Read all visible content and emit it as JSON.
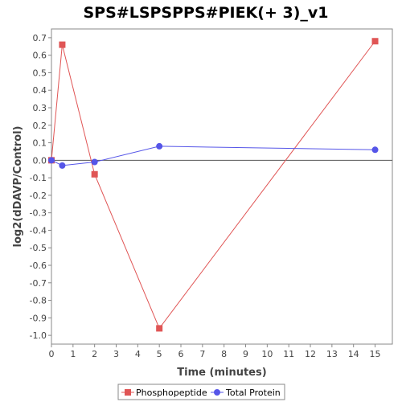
{
  "chart_data": {
    "type": "line",
    "title": "SPS#LSPSPPS#PIEK(+ 3)_v1",
    "xlabel": "Time (minutes)",
    "ylabel": "log2(dDAVP/Control)",
    "xlim": [
      0,
      15.8
    ],
    "ylim": [
      -1.05,
      0.75
    ],
    "x_ticks": [
      0,
      1,
      2,
      3,
      4,
      5,
      6,
      7,
      8,
      9,
      10,
      11,
      12,
      13,
      14,
      15
    ],
    "y_ticks": [
      0.7,
      0.6,
      0.5,
      0.4,
      0.3,
      0.2,
      0.1,
      0.0,
      -0.1,
      -0.2,
      -0.3,
      -0.4,
      -0.5,
      -0.6,
      -0.7,
      -0.8,
      -0.9,
      -1.0
    ],
    "y_tick_labels": [
      "0.7",
      "0.6",
      "0.5",
      "0.4",
      "0.3",
      "0.2",
      "0.1",
      "0.0",
      "-0.1",
      "-0.2",
      "-0.3",
      "-0.4",
      "-0.5",
      "-0.6",
      "-0.7",
      "-0.8",
      "-0.9",
      "-1.0"
    ],
    "grid": false,
    "zero_line": true,
    "legend_position": "bottom",
    "series": [
      {
        "name": "Phosphopeptide",
        "marker": "square",
        "color": "#e05555",
        "x": [
          0,
          0.5,
          2,
          5,
          15
        ],
        "y": [
          0.0,
          0.66,
          -0.08,
          -0.96,
          0.68
        ]
      },
      {
        "name": "Total Protein",
        "marker": "circle",
        "color": "#5555e8",
        "x": [
          0,
          0.5,
          2,
          5,
          15
        ],
        "y": [
          0.0,
          -0.03,
          -0.01,
          0.08,
          0.06
        ]
      }
    ]
  }
}
